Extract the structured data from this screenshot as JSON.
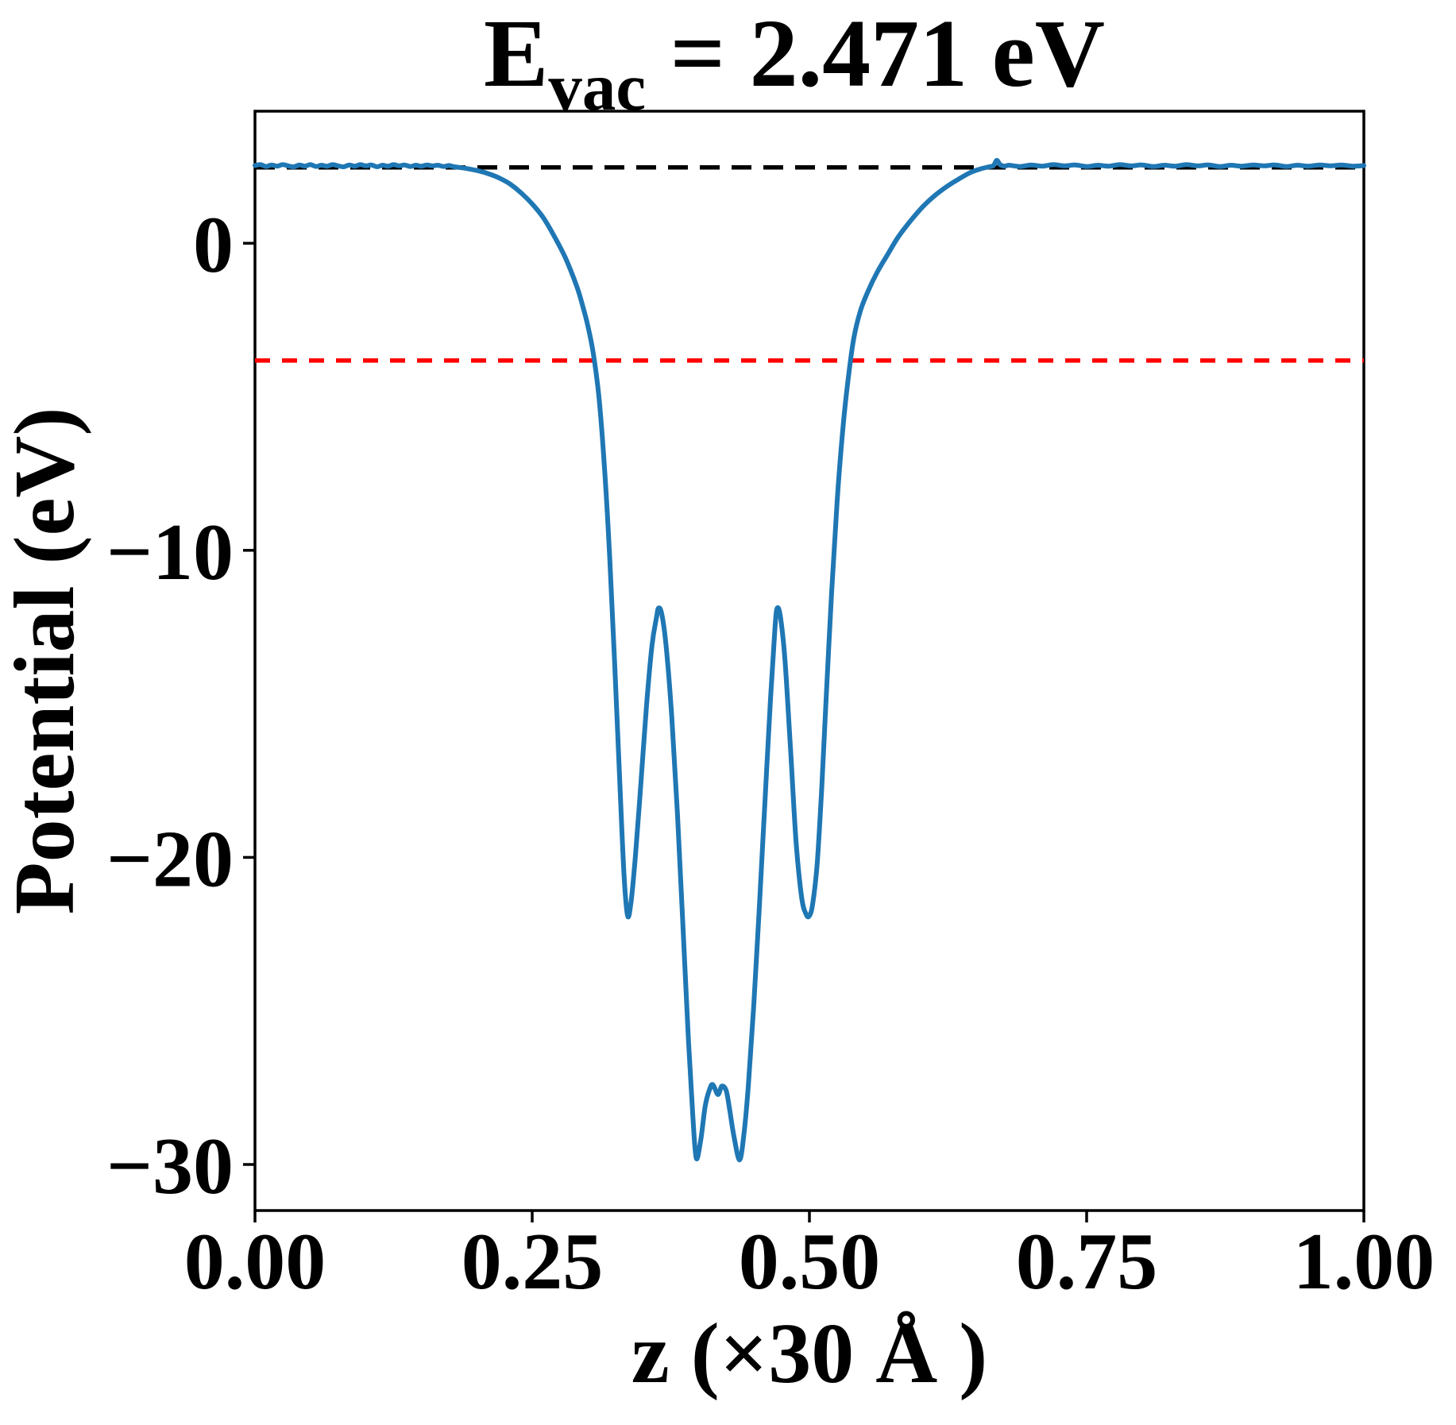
{
  "title": {
    "base": "E",
    "subscript": "vac",
    "rest": " = 2.471 eV",
    "plain": "E_vac = 2.471 eV"
  },
  "axes": {
    "xlabel": "z (×30 Å )",
    "ylabel": "Potential (eV)"
  },
  "colors": {
    "curve": "#1f77b4",
    "vacuum_line": "#000000",
    "fermi_line": "#ff0000",
    "background": "#ffffff",
    "frame": "#000000"
  },
  "chart_data": {
    "type": "line",
    "title": "E_vac = 2.471 eV",
    "xlabel": "z (×30 Å )",
    "ylabel": "Potential (eV)",
    "xlim": [
      0,
      1
    ],
    "ylim": [
      -31.5,
      4.3
    ],
    "grid": false,
    "legend": "none",
    "x_tick_values": [
      0,
      0.25,
      0.5,
      0.75,
      1.0
    ],
    "x_tick_labels": [
      "0.00",
      "0.25",
      "0.50",
      "0.75",
      "1.00"
    ],
    "y_tick_values": [
      0,
      -10,
      -20,
      -30
    ],
    "y_tick_labels": [
      "0",
      "−10",
      "−20",
      "−30"
    ],
    "reference_lines": [
      {
        "name": "vacuum-level",
        "y": 2.471,
        "color": "#000000",
        "style": "dashed",
        "dash": [
          25,
          15
        ],
        "width": 5.5
      },
      {
        "name": "fermi-level",
        "y": -3.82,
        "color": "#ff0000",
        "style": "dashed",
        "dash": [
          19,
          15
        ],
        "width": 5.5
      }
    ],
    "annotations": {
      "E_vac_eV": 2.471
    },
    "series": [
      {
        "name": "planar-averaged-potential",
        "color": "#1f77b4",
        "width": 6,
        "points": [
          [
            0.0,
            2.53
          ],
          [
            0.005,
            2.56
          ],
          [
            0.01,
            2.5
          ],
          [
            0.015,
            2.55
          ],
          [
            0.02,
            2.51
          ],
          [
            0.025,
            2.56
          ],
          [
            0.03,
            2.52
          ],
          [
            0.035,
            2.49
          ],
          [
            0.04,
            2.55
          ],
          [
            0.045,
            2.51
          ],
          [
            0.05,
            2.56
          ],
          [
            0.055,
            2.5
          ],
          [
            0.06,
            2.54
          ],
          [
            0.065,
            2.51
          ],
          [
            0.07,
            2.56
          ],
          [
            0.075,
            2.52
          ],
          [
            0.08,
            2.49
          ],
          [
            0.085,
            2.55
          ],
          [
            0.09,
            2.51
          ],
          [
            0.095,
            2.56
          ],
          [
            0.1,
            2.52
          ],
          [
            0.105,
            2.55
          ],
          [
            0.11,
            2.49
          ],
          [
            0.115,
            2.54
          ],
          [
            0.12,
            2.51
          ],
          [
            0.125,
            2.56
          ],
          [
            0.13,
            2.52
          ],
          [
            0.135,
            2.55
          ],
          [
            0.14,
            2.5
          ],
          [
            0.145,
            2.54
          ],
          [
            0.15,
            2.51
          ],
          [
            0.155,
            2.55
          ],
          [
            0.16,
            2.52
          ],
          [
            0.165,
            2.54
          ],
          [
            0.17,
            2.5
          ],
          [
            0.175,
            2.53
          ],
          [
            0.18,
            2.49
          ],
          [
            0.19,
            2.44
          ],
          [
            0.2,
            2.37
          ],
          [
            0.21,
            2.27
          ],
          [
            0.22,
            2.13
          ],
          [
            0.23,
            1.93
          ],
          [
            0.24,
            1.64
          ],
          [
            0.25,
            1.28
          ],
          [
            0.26,
            0.83
          ],
          [
            0.27,
            0.22
          ],
          [
            0.28,
            -0.48
          ],
          [
            0.29,
            -1.38
          ],
          [
            0.295,
            -1.97
          ],
          [
            0.3,
            -2.66
          ],
          [
            0.305,
            -3.57
          ],
          [
            0.31,
            -4.95
          ],
          [
            0.315,
            -7.2
          ],
          [
            0.32,
            -10.3
          ],
          [
            0.325,
            -14.2
          ],
          [
            0.33,
            -18.4
          ],
          [
            0.333,
            -20.7
          ],
          [
            0.336,
            -21.9
          ],
          [
            0.339,
            -21.5
          ],
          [
            0.343,
            -20.0
          ],
          [
            0.348,
            -17.6
          ],
          [
            0.353,
            -15.1
          ],
          [
            0.358,
            -13.1
          ],
          [
            0.362,
            -12.2
          ],
          [
            0.364,
            -11.88
          ],
          [
            0.367,
            -12.1
          ],
          [
            0.371,
            -13.2
          ],
          [
            0.376,
            -15.5
          ],
          [
            0.381,
            -18.6
          ],
          [
            0.386,
            -22.3
          ],
          [
            0.391,
            -26.0
          ],
          [
            0.395,
            -28.5
          ],
          [
            0.398,
            -29.8
          ],
          [
            0.402,
            -29.2
          ],
          [
            0.406,
            -28.1
          ],
          [
            0.41,
            -27.55
          ],
          [
            0.413,
            -27.4
          ],
          [
            0.4175,
            -27.72
          ],
          [
            0.421,
            -27.45
          ],
          [
            0.425,
            -27.6
          ],
          [
            0.428,
            -28.2
          ],
          [
            0.432,
            -29.1
          ],
          [
            0.437,
            -29.85
          ],
          [
            0.441,
            -29.0
          ],
          [
            0.445,
            -27.4
          ],
          [
            0.45,
            -24.7
          ],
          [
            0.455,
            -21.5
          ],
          [
            0.46,
            -18.1
          ],
          [
            0.465,
            -14.8
          ],
          [
            0.469,
            -12.5
          ],
          [
            0.471,
            -11.88
          ],
          [
            0.474,
            -12.2
          ],
          [
            0.478,
            -13.6
          ],
          [
            0.483,
            -16.5
          ],
          [
            0.488,
            -19.5
          ],
          [
            0.493,
            -21.3
          ],
          [
            0.497,
            -21.85
          ],
          [
            0.5,
            -21.9
          ],
          [
            0.503,
            -21.5
          ],
          [
            0.507,
            -20.2
          ],
          [
            0.511,
            -17.8
          ],
          [
            0.515,
            -14.9
          ],
          [
            0.52,
            -11.4
          ],
          [
            0.525,
            -8.4
          ],
          [
            0.53,
            -6.1
          ],
          [
            0.535,
            -4.4
          ],
          [
            0.54,
            -3.1
          ],
          [
            0.546,
            -2.2
          ],
          [
            0.553,
            -1.55
          ],
          [
            0.561,
            -0.95
          ],
          [
            0.57,
            -0.4
          ],
          [
            0.58,
            0.2
          ],
          [
            0.591,
            0.72
          ],
          [
            0.602,
            1.18
          ],
          [
            0.613,
            1.55
          ],
          [
            0.624,
            1.85
          ],
          [
            0.635,
            2.1
          ],
          [
            0.645,
            2.3
          ],
          [
            0.654,
            2.42
          ],
          [
            0.662,
            2.49
          ],
          [
            0.666,
            2.53
          ],
          [
            0.669,
            2.7
          ],
          [
            0.672,
            2.56
          ],
          [
            0.676,
            2.51
          ],
          [
            0.68,
            2.54
          ],
          [
            0.69,
            2.5
          ],
          [
            0.7,
            2.55
          ],
          [
            0.71,
            2.51
          ],
          [
            0.72,
            2.56
          ],
          [
            0.73,
            2.52
          ],
          [
            0.74,
            2.55
          ],
          [
            0.75,
            2.5
          ],
          [
            0.76,
            2.54
          ],
          [
            0.77,
            2.51
          ],
          [
            0.78,
            2.56
          ],
          [
            0.79,
            2.52
          ],
          [
            0.8,
            2.55
          ],
          [
            0.81,
            2.5
          ],
          [
            0.82,
            2.54
          ],
          [
            0.83,
            2.51
          ],
          [
            0.84,
            2.56
          ],
          [
            0.85,
            2.52
          ],
          [
            0.86,
            2.55
          ],
          [
            0.87,
            2.5
          ],
          [
            0.88,
            2.54
          ],
          [
            0.89,
            2.51
          ],
          [
            0.9,
            2.55
          ],
          [
            0.91,
            2.52
          ],
          [
            0.92,
            2.55
          ],
          [
            0.93,
            2.5
          ],
          [
            0.94,
            2.54
          ],
          [
            0.95,
            2.51
          ],
          [
            0.96,
            2.55
          ],
          [
            0.97,
            2.52
          ],
          [
            0.98,
            2.55
          ],
          [
            0.99,
            2.51
          ],
          [
            1.0,
            2.53
          ]
        ]
      }
    ]
  }
}
